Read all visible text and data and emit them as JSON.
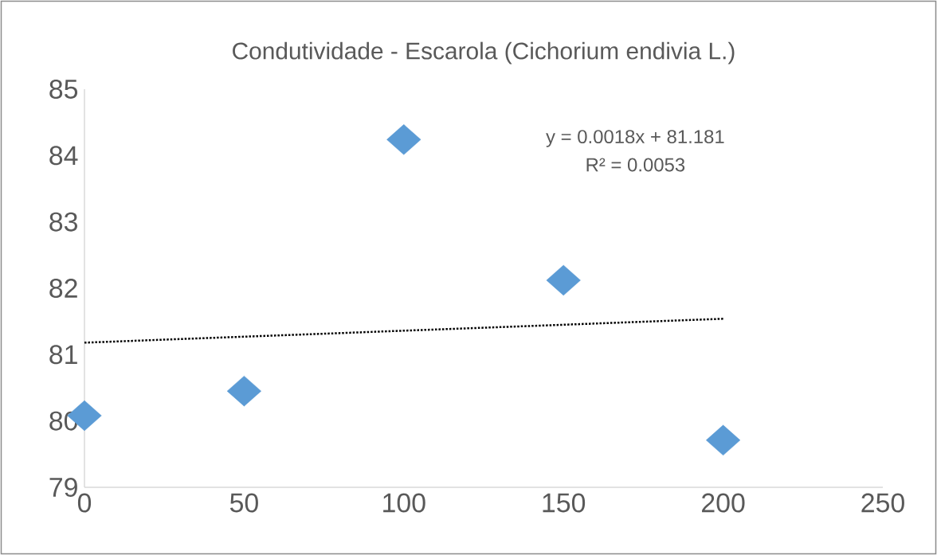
{
  "chart_data": {
    "type": "scatter",
    "title": "Condutividade - Escarola (Cichorium endivia L.)",
    "x": [
      0,
      50,
      100,
      150,
      200
    ],
    "series": [
      {
        "color": "#5b9bd5",
        "marker": "diamond",
        "values": [
          80.08,
          80.45,
          84.24,
          82.12,
          79.71
        ]
      },
      {
        "type": "line",
        "color": "#000000",
        "marker": "none",
        "line_style": "dotted",
        "x": [
          0,
          200
        ],
        "values": [
          81.18,
          81.54
        ]
      }
    ],
    "xlim": [
      0,
      250
    ],
    "xticks": [
      0,
      50,
      100,
      150,
      200,
      250
    ],
    "ylim": [
      79,
      85
    ],
    "yticks": [
      79,
      80,
      81,
      82,
      83,
      84,
      85
    ],
    "annotations": [
      "y = 0.0018x + 81.181",
      "R² = 0.0053"
    ]
  }
}
